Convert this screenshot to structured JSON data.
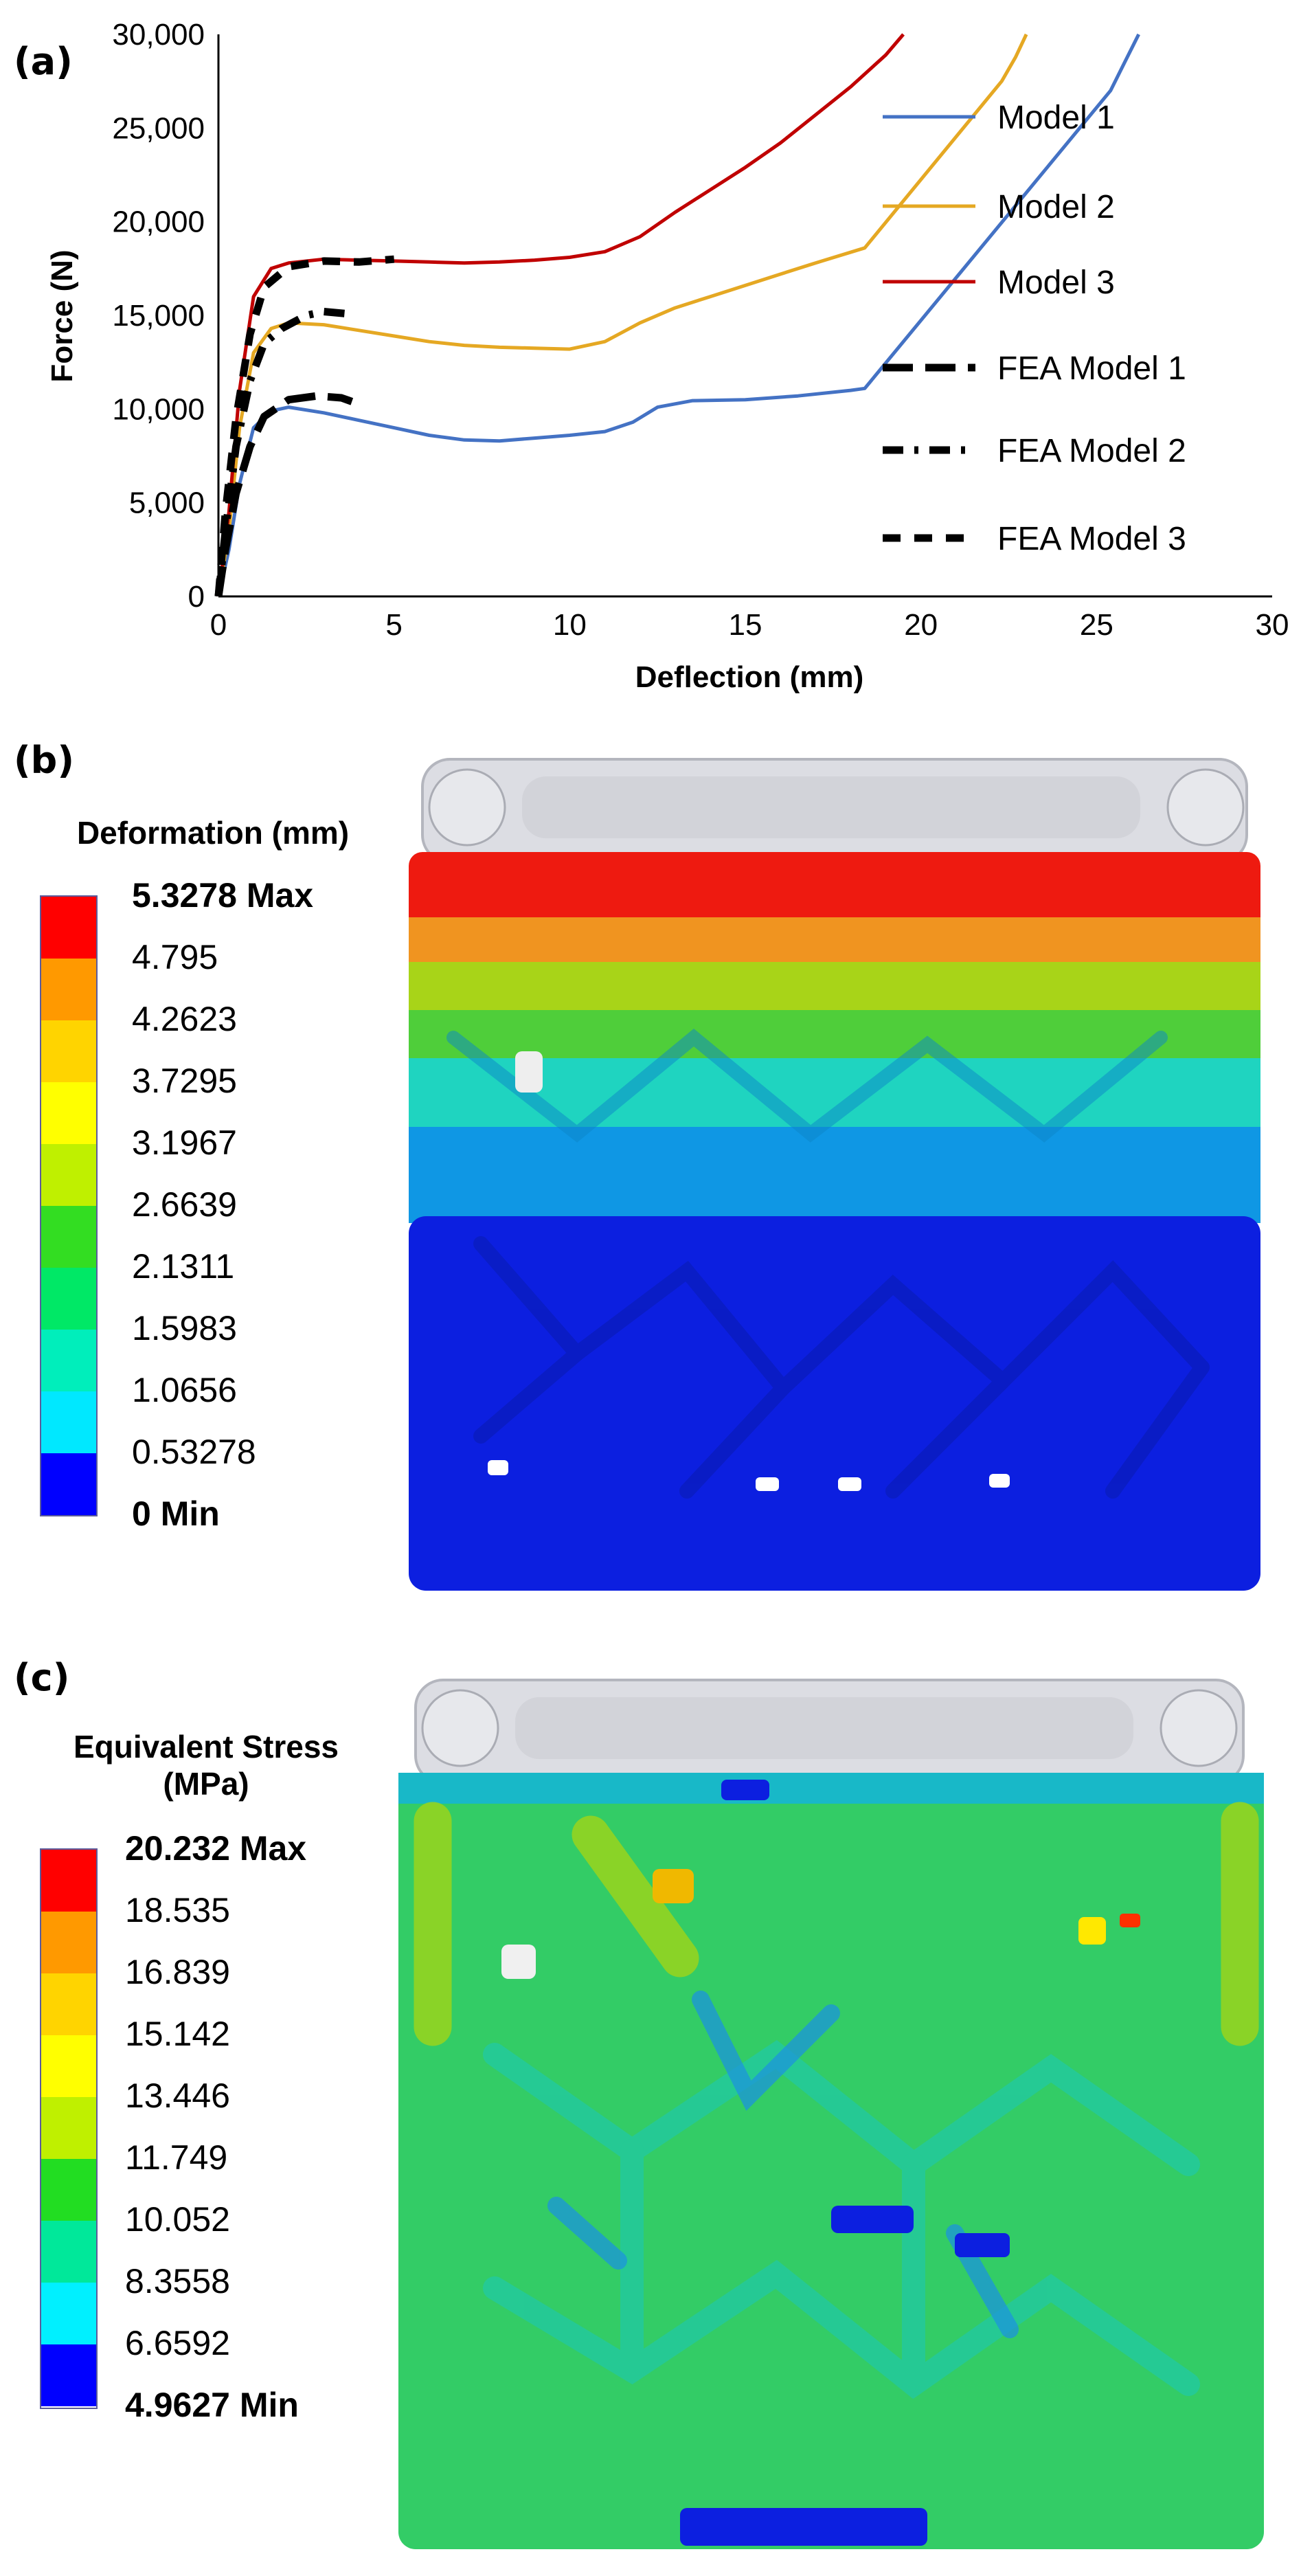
{
  "panel_a": {
    "label": "(a)",
    "chart_data": {
      "type": "line",
      "title": "",
      "xlabel": "Deflection (mm)",
      "ylabel": "Force (N)",
      "xlim": [
        0,
        30
      ],
      "ylim": [
        0,
        30000
      ],
      "x_ticks": [
        "0",
        "5",
        "10",
        "15",
        "20",
        "25",
        "30"
      ],
      "y_ticks": [
        "0",
        "5,000",
        "10,000",
        "15,000",
        "20,000",
        "25,000",
        "30,000"
      ],
      "grid": false,
      "legend_position": "right",
      "series": [
        {
          "name": "Model 1",
          "color": "#4472c4",
          "style": "solid",
          "x": [
            0,
            0.3,
            0.6,
            1.0,
            1.5,
            2.0,
            3.0,
            4.0,
            5.0,
            6.0,
            7.0,
            8.0,
            9.0,
            10.0,
            11.0,
            11.8,
            12.5,
            13.5,
            15.0,
            16.5,
            18.0,
            18.4,
            25.4,
            25.8,
            26.2
          ],
          "y": [
            0,
            2500,
            6000,
            9000,
            9900,
            10100,
            9800,
            9400,
            9000,
            8600,
            8350,
            8300,
            8450,
            8600,
            8800,
            9300,
            10100,
            10450,
            10500,
            10700,
            11000,
            11100,
            27000,
            28500,
            30000
          ]
        },
        {
          "name": "Model 2",
          "color": "#e5a823",
          "style": "solid",
          "x": [
            0,
            0.3,
            0.6,
            1.0,
            1.5,
            2.0,
            3.0,
            4.0,
            5.0,
            6.0,
            7.0,
            8.0,
            9.0,
            10.0,
            11.0,
            12.0,
            13.0,
            14.0,
            15.0,
            16.0,
            17.0,
            18.4,
            22.3,
            22.7,
            23.0
          ],
          "y": [
            0,
            3500,
            9000,
            13000,
            14300,
            14600,
            14500,
            14200,
            13900,
            13600,
            13400,
            13300,
            13250,
            13200,
            13600,
            14600,
            15400,
            16000,
            16600,
            17200,
            17800,
            18600,
            27500,
            28800,
            30000
          ]
        },
        {
          "name": "Model 3",
          "color": "#c00000",
          "style": "solid",
          "x": [
            0,
            0.3,
            0.6,
            1.0,
            1.5,
            2.0,
            3.0,
            4.0,
            5.0,
            6.0,
            7.0,
            8.0,
            9.0,
            10.0,
            11.0,
            12.0,
            13.0,
            14.0,
            15.0,
            16.0,
            17.0,
            18.0,
            19.0,
            19.5
          ],
          "y": [
            0,
            4500,
            11000,
            16000,
            17500,
            17800,
            18000,
            17950,
            17900,
            17850,
            17800,
            17850,
            17950,
            18100,
            18400,
            19200,
            20500,
            21700,
            22900,
            24200,
            25700,
            27200,
            28900,
            30000
          ]
        },
        {
          "name": "FEA Model 1",
          "color": "#000000",
          "style": "dash-long",
          "x": [
            0,
            0.2,
            0.5,
            0.9,
            1.3,
            2.0,
            2.8,
            3.5,
            3.8
          ],
          "y": [
            0,
            2500,
            5500,
            8000,
            9600,
            10500,
            10700,
            10600,
            10400
          ]
        },
        {
          "name": "FEA Model 2",
          "color": "#000000",
          "style": "dash-dot",
          "x": [
            0,
            0.2,
            0.5,
            0.9,
            1.3,
            1.8,
            2.5,
            3.0,
            3.6
          ],
          "y": [
            0,
            3500,
            8000,
            11500,
            13500,
            14300,
            15000,
            15200,
            15100
          ]
        },
        {
          "name": "FEA Model 3",
          "color": "#000000",
          "style": "dash",
          "x": [
            0,
            0.2,
            0.5,
            0.9,
            1.3,
            2.0,
            3.0,
            4.0,
            5.0
          ],
          "y": [
            0,
            4500,
            9500,
            14000,
            16500,
            17600,
            17900,
            17850,
            18000
          ]
        }
      ]
    }
  },
  "panel_b": {
    "label": "(b)",
    "title": "Deformation (mm)",
    "levels": [
      {
        "label": "5.3278 Max",
        "color": "#ff0000",
        "bold": true
      },
      {
        "label": "4.795",
        "color": "#ff9900"
      },
      {
        "label": "4.2623",
        "color": "#ffd400"
      },
      {
        "label": "3.7295",
        "color": "#ffff00"
      },
      {
        "label": "3.1967",
        "color": "#bff000"
      },
      {
        "label": "2.6639",
        "color": "#33dd22"
      },
      {
        "label": "2.1311",
        "color": "#00e866"
      },
      {
        "label": "1.5983",
        "color": "#00eebb"
      },
      {
        "label": "1.0656",
        "color": "#00e8ff"
      },
      {
        "label": "0.53278",
        "color": "#0099ee"
      },
      {
        "label": "0 Min",
        "color": "#0000ff",
        "bold": true
      }
    ]
  },
  "panel_c": {
    "label": "(c)",
    "title_line1": "Equivalent Stress",
    "title_line2": "(MPa)",
    "levels": [
      {
        "label": "20.232 Max",
        "color": "#ff0000",
        "bold": true
      },
      {
        "label": "18.535",
        "color": "#ff9900"
      },
      {
        "label": "16.839",
        "color": "#ffd400"
      },
      {
        "label": "15.142",
        "color": "#ffff00"
      },
      {
        "label": "13.446",
        "color": "#bff000"
      },
      {
        "label": "11.749",
        "color": "#22dd22"
      },
      {
        "label": "10.052",
        "color": "#00e89a"
      },
      {
        "label": "8.3558",
        "color": "#00f0ff"
      },
      {
        "label": "6.6592",
        "color": "#00aaee"
      },
      {
        "label": "4.9627 Min",
        "color": "#0000ff",
        "bold": true
      }
    ]
  }
}
